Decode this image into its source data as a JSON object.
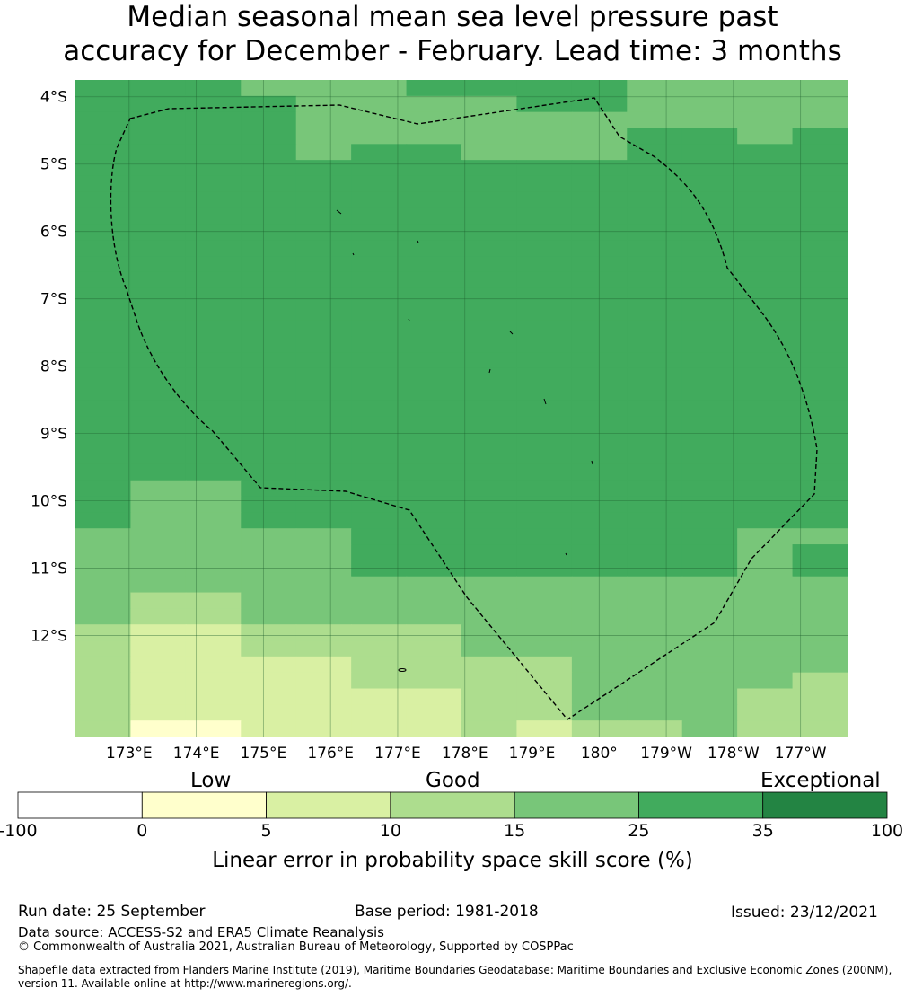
{
  "title": {
    "line1": "Median seasonal mean sea level pressure past",
    "line2": "accuracy for December - February. Lead time: 3 months"
  },
  "map": {
    "lat_labels": [
      "4°S",
      "5°S",
      "6°S",
      "7°S",
      "8°S",
      "9°S",
      "10°S",
      "11°S",
      "12°S"
    ],
    "lat_values": [
      -4,
      -5,
      -6,
      -7,
      -8,
      -9,
      -10,
      -11,
      -12
    ],
    "lon_labels": [
      "173°E",
      "174°E",
      "175°E",
      "176°E",
      "177°E",
      "178°E",
      "179°E",
      "180°",
      "179°W",
      "178°W",
      "177°W"
    ],
    "lon_values": [
      173,
      174,
      175,
      176,
      177,
      178,
      179,
      180,
      181,
      182,
      183
    ],
    "lon_range": [
      172.2,
      183.7
    ],
    "lat_range": [
      -3.75,
      -13.5
    ],
    "grid": [
      [
        "g35",
        "g35",
        "g35",
        "g15",
        "g15",
        "g15",
        "g35",
        "g35",
        "g35",
        "g35",
        "g15",
        "g15",
        "g15",
        "g15"
      ],
      [
        "g35",
        "g35",
        "g35",
        "g35",
        "g15",
        "g15",
        "g15",
        "g15",
        "g35",
        "g35",
        "g15",
        "g15",
        "g15",
        "g15"
      ],
      [
        "g35",
        "g35",
        "g35",
        "g35",
        "g15",
        "g15",
        "g15",
        "g15",
        "g15",
        "g15",
        "g15",
        "g15",
        "g15",
        "g15"
      ],
      [
        "g35",
        "g35",
        "g35",
        "g35",
        "g15",
        "g15",
        "g15",
        "g15",
        "g15",
        "g15",
        "g35",
        "g35",
        "g15",
        "g35"
      ],
      [
        "g35",
        "g35",
        "g35",
        "g35",
        "g15",
        "g35",
        "g35",
        "g15",
        "g15",
        "g15",
        "g35",
        "g35",
        "g35",
        "g35"
      ],
      [
        "g35",
        "g35",
        "g35",
        "g35",
        "g35",
        "g35",
        "g35",
        "g35",
        "g35",
        "g35",
        "g35",
        "g35",
        "g35",
        "g35"
      ],
      [
        "g35",
        "g35",
        "g35",
        "g35",
        "g35",
        "g35",
        "g35",
        "g35",
        "g35",
        "g35",
        "g35",
        "g35",
        "g35",
        "g35"
      ],
      [
        "g35",
        "g35",
        "g35",
        "g35",
        "g35",
        "g35",
        "g35",
        "g35",
        "g35",
        "g35",
        "g35",
        "g35",
        "g35",
        "g35"
      ],
      [
        "g35",
        "g35",
        "g35",
        "g35",
        "g35",
        "g35",
        "g35",
        "g35",
        "g35",
        "g35",
        "g35",
        "g35",
        "g35",
        "g35"
      ],
      [
        "g35",
        "g35",
        "g35",
        "g35",
        "g35",
        "g35",
        "g35",
        "g35",
        "g35",
        "g35",
        "g35",
        "g35",
        "g35",
        "g35"
      ],
      [
        "g35",
        "g35",
        "g35",
        "g35",
        "g35",
        "g35",
        "g35",
        "g35",
        "g35",
        "g35",
        "g35",
        "g35",
        "g35",
        "g35"
      ],
      [
        "g35",
        "g35",
        "g35",
        "g35",
        "g35",
        "g35",
        "g35",
        "g35",
        "g35",
        "g35",
        "g35",
        "g35",
        "g35",
        "g35"
      ],
      [
        "g35",
        "g35",
        "g35",
        "g35",
        "g35",
        "g35",
        "g35",
        "g35",
        "g35",
        "g35",
        "g35",
        "g35",
        "g35",
        "g35"
      ],
      [
        "g35",
        "g35",
        "g35",
        "g35",
        "g35",
        "g35",
        "g35",
        "g35",
        "g35",
        "g35",
        "g35",
        "g35",
        "g35",
        "g35"
      ],
      [
        "g35",
        "g35",
        "g35",
        "g35",
        "g35",
        "g35",
        "g35",
        "g35",
        "g35",
        "g35",
        "g35",
        "g35",
        "g35",
        "g35"
      ],
      [
        "g35",
        "g35",
        "g35",
        "g35",
        "g35",
        "g35",
        "g35",
        "g35",
        "g35",
        "g35",
        "g35",
        "g35",
        "g35",
        "g35"
      ],
      [
        "g35",
        "g35",
        "g35",
        "g35",
        "g35",
        "g35",
        "g35",
        "g35",
        "g35",
        "g35",
        "g35",
        "g35",
        "g35",
        "g35"
      ],
      [
        "g35",
        "g35",
        "g35",
        "g35",
        "g35",
        "g35",
        "g35",
        "g35",
        "g35",
        "g35",
        "g35",
        "g35",
        "g35",
        "g35"
      ],
      [
        "g35",
        "g35",
        "g35",
        "g35",
        "g35",
        "g35",
        "g35",
        "g35",
        "g35",
        "g35",
        "g35",
        "g35",
        "g35",
        "g35"
      ],
      [
        "g35",
        "g35",
        "g35",
        "g35",
        "g35",
        "g35",
        "g35",
        "g35",
        "g35",
        "g35",
        "g35",
        "g35",
        "g35",
        "g35"
      ],
      [
        "g35",
        "g35",
        "g35",
        "g35",
        "g35",
        "g35",
        "g35",
        "g35",
        "g35",
        "g35",
        "g35",
        "g35",
        "g35",
        "g35"
      ],
      [
        "g35",
        "g35",
        "g35",
        "g35",
        "g35",
        "g35",
        "g35",
        "g35",
        "g35",
        "g35",
        "g35",
        "g35",
        "g35",
        "g35"
      ],
      [
        "g35",
        "g35",
        "g35",
        "g35",
        "g35",
        "g35",
        "g35",
        "g35",
        "g35",
        "g35",
        "g35",
        "g35",
        "g35",
        "g35"
      ],
      [
        "g35",
        "g35",
        "g35",
        "g35",
        "g35",
        "g35",
        "g35",
        "g35",
        "g35",
        "g35",
        "g35",
        "g35",
        "g35",
        "g35"
      ],
      [
        "g35",
        "g35",
        "g35",
        "g35",
        "g35",
        "g35",
        "g35",
        "g35",
        "g35",
        "g35",
        "g35",
        "g35",
        "g35",
        "g35"
      ],
      [
        "g35",
        "g15",
        "g15",
        "g35",
        "g35",
        "g35",
        "g35",
        "g35",
        "g35",
        "g35",
        "g35",
        "g35",
        "g35",
        "g35"
      ],
      [
        "g35",
        "g15",
        "g15",
        "g35",
        "g35",
        "g35",
        "g35",
        "g35",
        "g35",
        "g35",
        "g35",
        "g35",
        "g35",
        "g35"
      ],
      [
        "g35",
        "g15",
        "g15",
        "g35",
        "g35",
        "g35",
        "g35",
        "g35",
        "g35",
        "g35",
        "g35",
        "g35",
        "g35",
        "g35"
      ],
      [
        "g15",
        "g15",
        "g15",
        "g15",
        "g15",
        "g35",
        "g35",
        "g35",
        "g35",
        "g35",
        "g35",
        "g35",
        "g15",
        "g15"
      ],
      [
        "g15",
        "g15",
        "g15",
        "g15",
        "g15",
        "g35",
        "g35",
        "g35",
        "g35",
        "g35",
        "g35",
        "g35",
        "g15",
        "g35"
      ],
      [
        "g15",
        "g15",
        "g15",
        "g15",
        "g15",
        "g35",
        "g35",
        "g35",
        "g35",
        "g35",
        "g35",
        "g35",
        "g15",
        "g35"
      ],
      [
        "g15",
        "g15",
        "g15",
        "g15",
        "g15",
        "g15",
        "g15",
        "g15",
        "g15",
        "g15",
        "g15",
        "g15",
        "g15",
        "g15"
      ],
      [
        "g15",
        "g10",
        "g10",
        "g15",
        "g15",
        "g15",
        "g15",
        "g15",
        "g15",
        "g15",
        "g15",
        "g15",
        "g15",
        "g15"
      ],
      [
        "g15",
        "g10",
        "g10",
        "g15",
        "g15",
        "g15",
        "g15",
        "g15",
        "g15",
        "g15",
        "g15",
        "g15",
        "g15",
        "g15"
      ],
      [
        "g10",
        "g5",
        "g5",
        "g10",
        "g10",
        "g10",
        "g10",
        "g15",
        "g15",
        "g15",
        "g15",
        "g15",
        "g15",
        "g15"
      ],
      [
        "g10",
        "g5",
        "g5",
        "g10",
        "g10",
        "g10",
        "g10",
        "g15",
        "g15",
        "g15",
        "g15",
        "g15",
        "g15",
        "g15"
      ],
      [
        "g10",
        "g5",
        "g5",
        "g5",
        "g5",
        "g10",
        "g10",
        "g10",
        "g10",
        "g15",
        "g15",
        "g15",
        "g15",
        "g15"
      ],
      [
        "g10",
        "g5",
        "g5",
        "g5",
        "g5",
        "g10",
        "g10",
        "g10",
        "g10",
        "g15",
        "g15",
        "g15",
        "g15",
        "g10"
      ],
      [
        "g10",
        "g5",
        "g5",
        "g5",
        "g5",
        "g5",
        "g5",
        "g10",
        "g10",
        "g15",
        "g15",
        "g15",
        "g10",
        "g10"
      ],
      [
        "g10",
        "g5",
        "g5",
        "g5",
        "g5",
        "g5",
        "g5",
        "g10",
        "g10",
        "g15",
        "g15",
        "g15",
        "g10",
        "g10"
      ],
      [
        "g10",
        "g0",
        "g0",
        "g5",
        "g5",
        "g5",
        "g5",
        "g10",
        "g5",
        "g10",
        "g10",
        "g15",
        "g10",
        "g10"
      ]
    ]
  },
  "colorbar": {
    "categories": [
      {
        "range": "-100 to 0",
        "color": "#ffffff"
      },
      {
        "range": "0 to 5",
        "color": "#ffffcc"
      },
      {
        "range": "5 to 10",
        "color": "#d9f0a3"
      },
      {
        "range": "10 to 15",
        "color": "#addd8e"
      },
      {
        "range": "15 to 25",
        "color": "#78c679"
      },
      {
        "range": "25 to 35",
        "color": "#41ab5d"
      },
      {
        "range": "35 to 100",
        "color": "#238443"
      }
    ],
    "ticks": [
      "-100",
      "0",
      "5",
      "10",
      "15",
      "25",
      "35",
      "100"
    ],
    "word_low": "Low",
    "word_good": "Good",
    "word_exceptional": "Exceptional",
    "label": "Linear error in probability space skill score (%)"
  },
  "colors": {
    "g0": "#ffffcc",
    "g5": "#d9f0a3",
    "g10": "#addd8e",
    "g15": "#78c679",
    "g35": "#41ab5d"
  },
  "footer": {
    "run_date": "Run date: 25 September",
    "base_period": "Base period: 1981-2018",
    "issued": "Issued: 23/12/2021",
    "data_source": "Data source: ACCESS-S2 and ERA5 Climate Reanalysis",
    "copyright": "© Commonwealth of Australia 2021, Australian Bureau of Meteorology, Supported by COSPPac",
    "shapefile_line1": "Shapefile data extracted from Flanders Marine Institute (2019), Maritime Boundaries Geodatabase: Maritime Boundaries and Exclusive Economic Zones (200NM),",
    "shapefile_line2": "version 11. Available online at http://www.marineregions.org/."
  }
}
